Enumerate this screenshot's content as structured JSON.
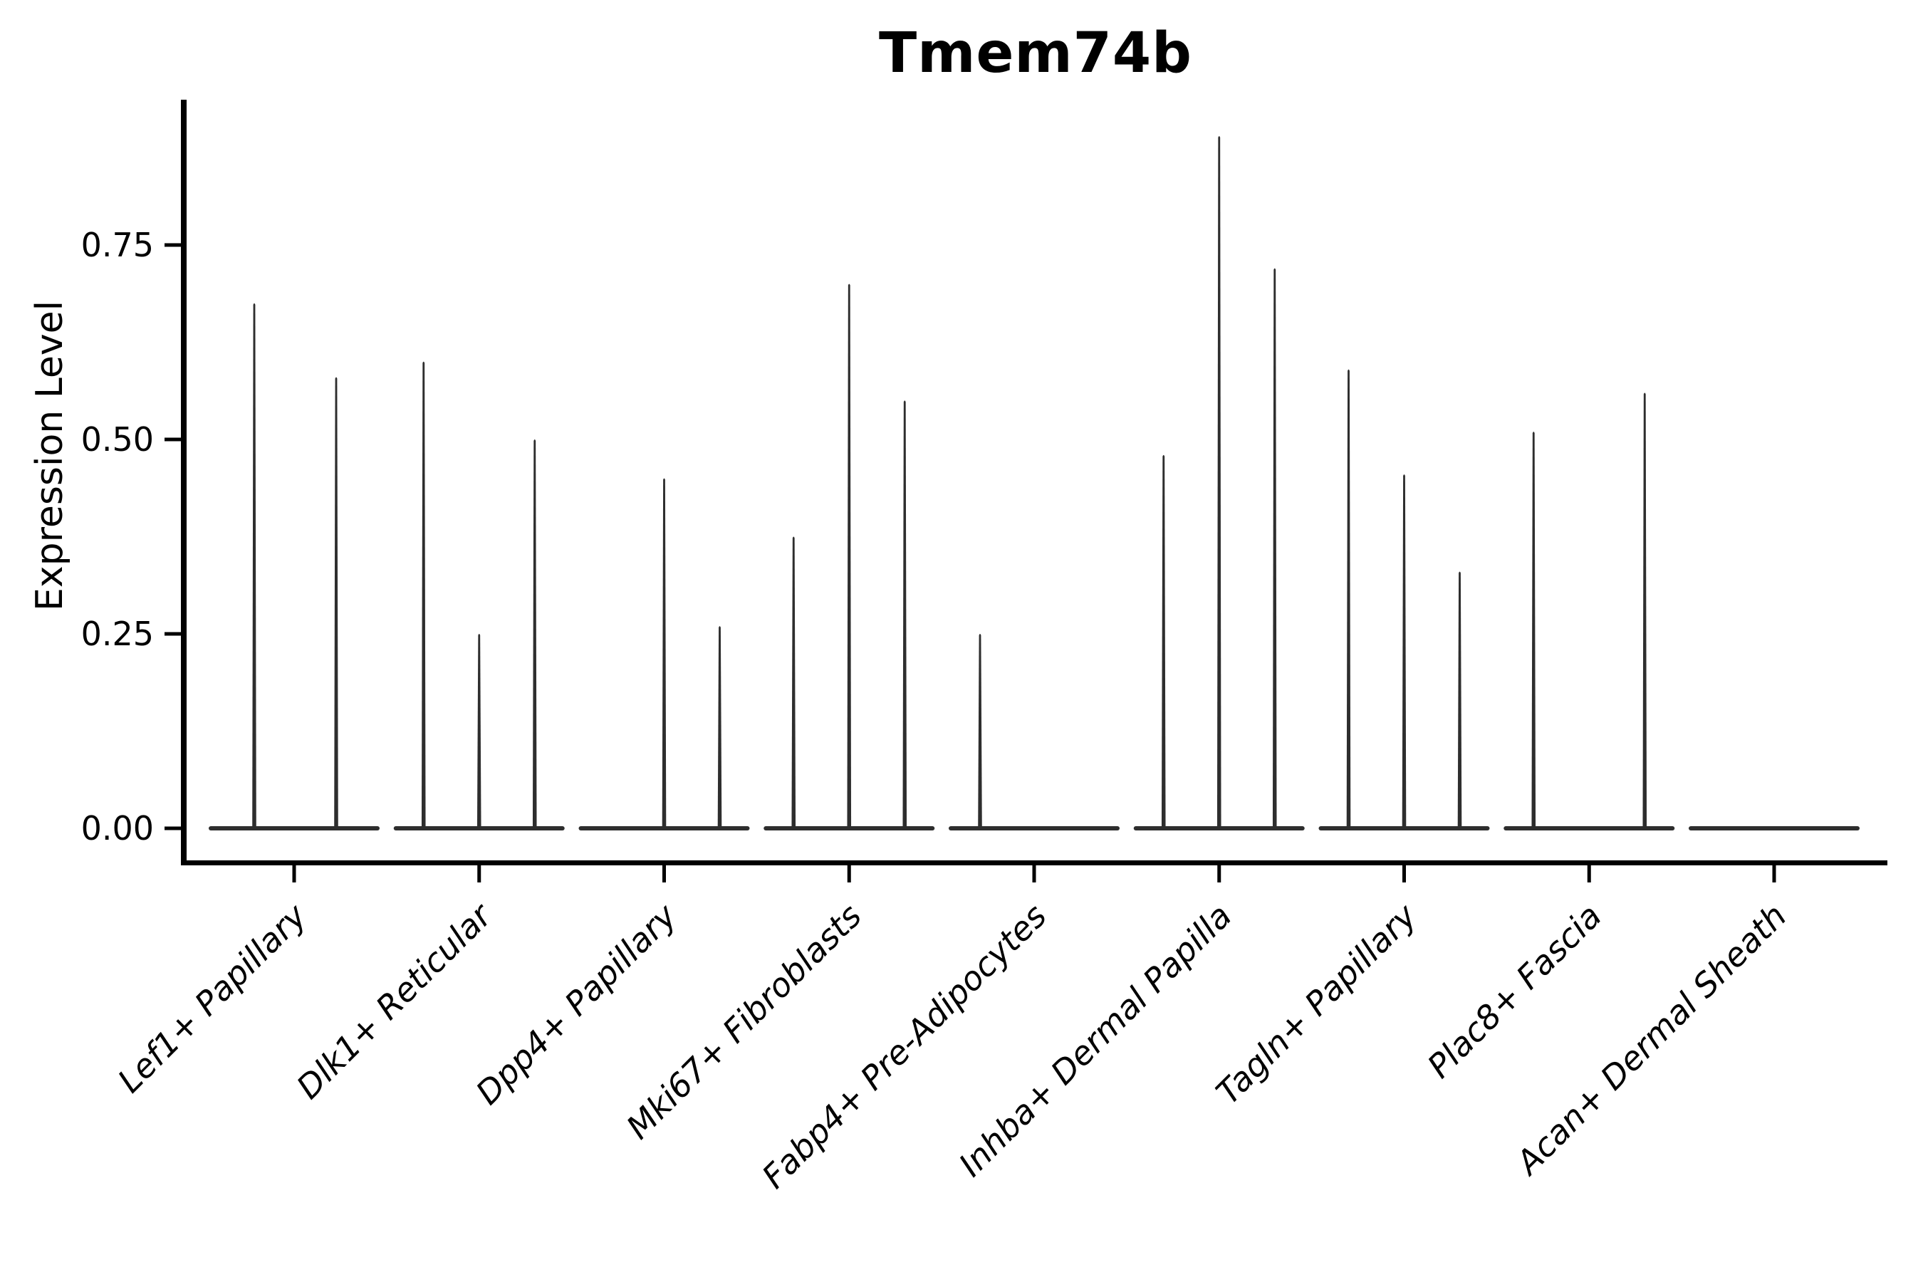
{
  "figure": {
    "background": "#ffffff"
  },
  "chart_data": {
    "type": "violin",
    "title": "Tmem74b",
    "ylabel": "Expression Level",
    "xlabel": "",
    "ylim": [
      0,
      0.94
    ],
    "grid": false,
    "legend": null,
    "yticks": [
      "0.00",
      "0.25",
      "0.50",
      "0.75"
    ],
    "ytick_values": [
      0.0,
      0.25,
      0.5,
      0.75
    ],
    "categories": [
      "Lef1+ Papillary",
      "Dlk1+ Reticular",
      "Dpp4+ Papillary",
      "Mki67+ Fibroblasts",
      "Fabp4+ Pre-Adipocytes",
      "Inhba+ Dermal Papilla",
      "Tagln+ Papillary",
      "Plac8+ Fascia",
      "Acan+ Dermal Sheath"
    ],
    "series": [
      {
        "category": "Lef1+ Papillary",
        "spikes": [
          {
            "offset": -56,
            "value": 0.675
          },
          {
            "offset": 59,
            "value": 0.58
          }
        ]
      },
      {
        "category": "Dlk1+ Reticular",
        "spikes": [
          {
            "offset": -78,
            "value": 0.6
          },
          {
            "offset": 0,
            "value": 0.25
          },
          {
            "offset": 78,
            "value": 0.5
          }
        ]
      },
      {
        "category": "Dpp4+ Papillary",
        "spikes": [
          {
            "offset": 0,
            "value": 0.45
          },
          {
            "offset": 78,
            "value": 0.26
          }
        ]
      },
      {
        "category": "Mki67+ Fibroblasts",
        "spikes": [
          {
            "offset": -78,
            "value": 0.375
          },
          {
            "offset": 0,
            "value": 0.7
          },
          {
            "offset": 78,
            "value": 0.55
          }
        ]
      },
      {
        "category": "Fabp4+ Pre-Adipocytes",
        "spikes": [
          {
            "offset": -76,
            "value": 0.25
          }
        ]
      },
      {
        "category": "Inhba+ Dermal Papilla",
        "spikes": [
          {
            "offset": -78,
            "value": 0.48
          },
          {
            "offset": 0,
            "value": 0.89
          },
          {
            "offset": 78,
            "value": 0.72
          }
        ]
      },
      {
        "category": "Tagln+ Papillary",
        "spikes": [
          {
            "offset": -78,
            "value": 0.59
          },
          {
            "offset": 0,
            "value": 0.455
          },
          {
            "offset": 78,
            "value": 0.33
          }
        ]
      },
      {
        "category": "Plac8+ Fascia",
        "spikes": [
          {
            "offset": -78,
            "value": 0.51
          },
          {
            "offset": 78,
            "value": 0.56
          }
        ]
      },
      {
        "category": "Acan+ Dermal Sheath",
        "spikes": []
      }
    ],
    "colors": {
      "violin_stroke": "#2e2e2e",
      "axis": "#000000",
      "text": "#000000",
      "background": "#ffffff"
    }
  }
}
